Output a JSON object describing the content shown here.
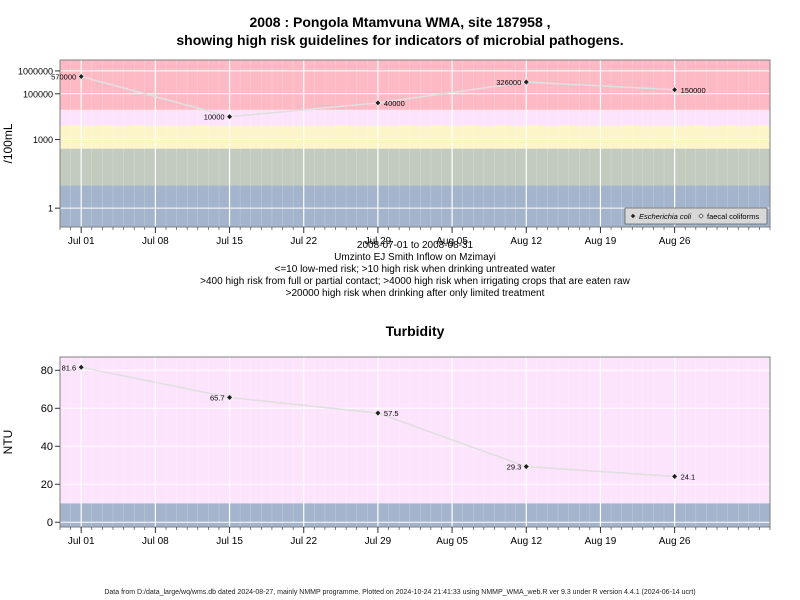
{
  "title_line1": "2008 : Pongola Mtamvuna WMA, site 187958 ,",
  "title_line2": "showing high risk guidelines for indicators of microbial pathogens.",
  "subtitle_lines": [
    "2008-07-01 to 2008-08-31",
    "Umzinto EJ Smith Inflow on Mzimayi",
    "<=10 low-med risk; >10 high risk when drinking untreated water",
    ">400 high risk from full or partial contact; >4000 high risk when irrigating crops that are eaten raw",
    ">20000 high risk when drinking after only limited treatment"
  ],
  "footer": "Data from D:/data_large/wq/wms.db dated 2024-08-27, mainly NMMP programme. Plotted on 2024-10-24 21:41:33 using NMMP_WMA_web.R ver 9.3 under R version 4.4.1 (2024-06-14 ucrt)",
  "colors": {
    "band_low": "#a3b4cc",
    "band_10_400": "#c2cbbe",
    "band_400_4000": "#fbf5c8",
    "band_4000_20000": "#fde4fd",
    "band_high": "#fdb9c4",
    "line": "#e0e0e0",
    "point": "#222222"
  },
  "chart_data": [
    {
      "type": "line",
      "title": "",
      "ylabel": "/100mL",
      "ylog": true,
      "ylim": [
        0.15,
        3000000
      ],
      "xlim": [
        "2008-06-29",
        "2008-09-04"
      ],
      "x_ticks": [
        "Jul 01",
        "Jul 08",
        "Jul 15",
        "Jul 22",
        "Jul 29",
        "Aug 05",
        "Aug 12",
        "Aug 19",
        "Aug 26"
      ],
      "x_tick_dates": [
        "2008-07-01",
        "2008-07-08",
        "2008-07-15",
        "2008-07-22",
        "2008-07-29",
        "2008-08-05",
        "2008-08-12",
        "2008-08-19",
        "2008-08-26"
      ],
      "y_ticks": [
        1,
        1000,
        100000,
        1000000
      ],
      "y_tick_labels": [
        "1",
        "1000",
        "100000",
        "1000000"
      ],
      "bands": [
        {
          "from": 0.15,
          "to": 10,
          "color": "#a3b4cc"
        },
        {
          "from": 10,
          "to": 400,
          "color": "#c2cbbe"
        },
        {
          "from": 400,
          "to": 4000,
          "color": "#fbf5c8"
        },
        {
          "from": 4000,
          "to": 20000,
          "color": "#fde4fd"
        },
        {
          "from": 20000,
          "to": 3000000,
          "color": "#fdb9c4"
        }
      ],
      "grid": true,
      "legend": {
        "position": "bottom-right",
        "entries": [
          "Escherichia coli",
          "faecal coliforms"
        ]
      },
      "series": [
        {
          "name": "Escherichia coli",
          "x": [
            "2008-07-01",
            "2008-07-15",
            "2008-07-29",
            "2008-08-12",
            "2008-08-26"
          ],
          "values": [
            570000,
            10000,
            40000,
            326000,
            150000
          ],
          "labels": [
            "570000",
            "10000",
            "40000",
            "326000",
            "150000"
          ]
        }
      ]
    },
    {
      "type": "line",
      "title": "Turbidity",
      "ylabel": "NTU",
      "ylog": false,
      "ylim": [
        -2.5,
        87
      ],
      "xlim": [
        "2008-06-29",
        "2008-09-04"
      ],
      "x_ticks": [
        "Jul 01",
        "Jul 08",
        "Jul 15",
        "Jul 22",
        "Jul 29",
        "Aug 05",
        "Aug 12",
        "Aug 19",
        "Aug 26"
      ],
      "x_tick_dates": [
        "2008-07-01",
        "2008-07-08",
        "2008-07-15",
        "2008-07-22",
        "2008-07-29",
        "2008-08-05",
        "2008-08-12",
        "2008-08-19",
        "2008-08-26"
      ],
      "y_ticks": [
        0,
        20,
        40,
        60,
        80
      ],
      "y_tick_labels": [
        "0",
        "20",
        "40",
        "60",
        "80"
      ],
      "bands": [
        {
          "from": -2.5,
          "to": 10,
          "color": "#a3b4cc"
        },
        {
          "from": 10,
          "to": 87,
          "color": "#fde4fd"
        }
      ],
      "grid": true,
      "series": [
        {
          "x": [
            "2008-07-01",
            "2008-07-15",
            "2008-07-29",
            "2008-08-12",
            "2008-08-26"
          ],
          "values": [
            81.6,
            65.7,
            57.5,
            29.3,
            24.1
          ],
          "labels": [
            "81.6",
            "65.7",
            "57.5",
            "29.3",
            "24.1"
          ]
        }
      ]
    }
  ]
}
